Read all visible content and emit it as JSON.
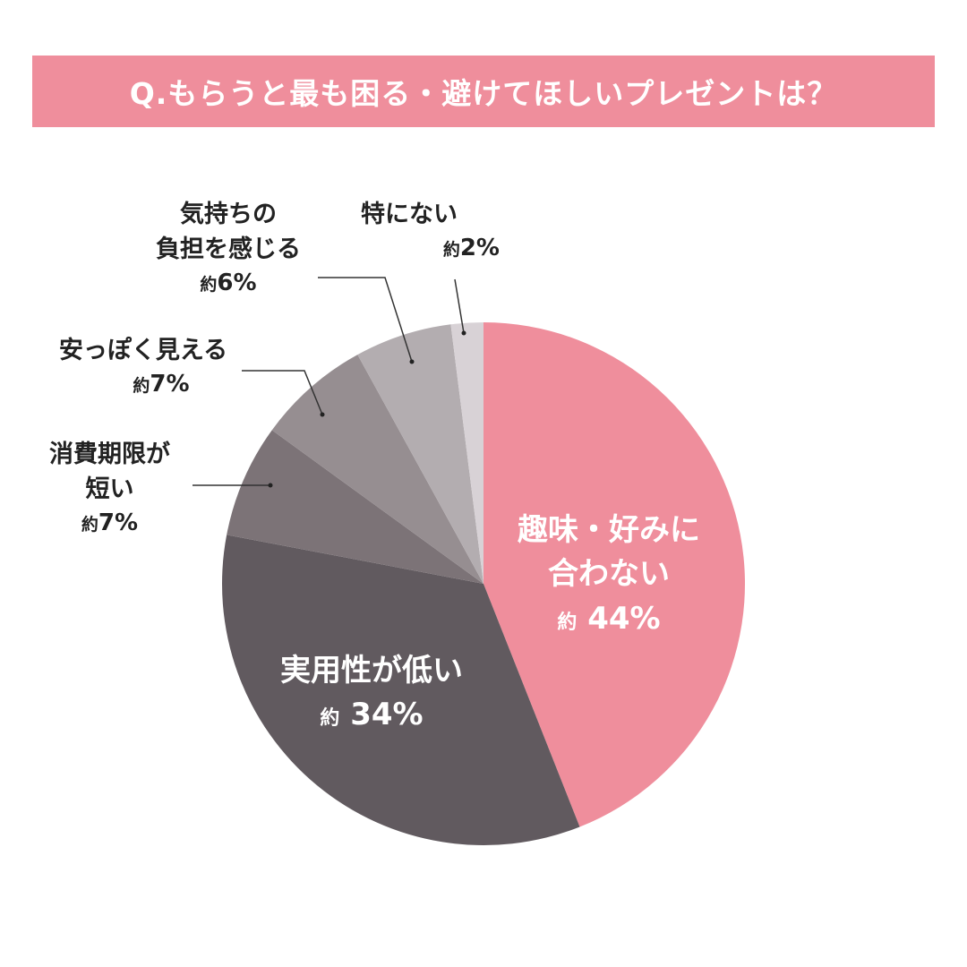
{
  "header": {
    "title": "Q.もらうと最も困る・避けてほしいプレゼントは？"
  },
  "labels": {
    "approx_prefix": "約",
    "s0": {
      "name": "趣味・好みに\n合わない",
      "pct": "44%"
    },
    "s1": {
      "name": "実用性が低い",
      "pct": "34%"
    },
    "s2": {
      "name": "消費期限が\n短い",
      "pct": "7%"
    },
    "s3": {
      "name": "安っぽく見える",
      "pct": "7%"
    },
    "s4": {
      "name": "気持ちの\n負担を感じる",
      "pct": "6%"
    },
    "s5": {
      "name": "特にない",
      "pct": "2%"
    }
  },
  "chart_data": {
    "type": "pie",
    "title": "Q.もらうと最も困る・避けてほしいプレゼントは？",
    "categories": [
      "趣味・好みに合わない",
      "実用性が低い",
      "消費期限が短い",
      "安っぽく見える",
      "気持ちの負担を感じる",
      "特にない"
    ],
    "values": [
      44,
      34,
      7,
      7,
      6,
      2
    ],
    "unit": "%",
    "value_prefix": "約",
    "colors": [
      "#ef8e9c",
      "#615a5f",
      "#7c7377",
      "#968e91",
      "#b3adb0",
      "#d8d2d6"
    ],
    "start_angle": "12 o'clock, clockwise",
    "legend": "none (callout labels)"
  }
}
